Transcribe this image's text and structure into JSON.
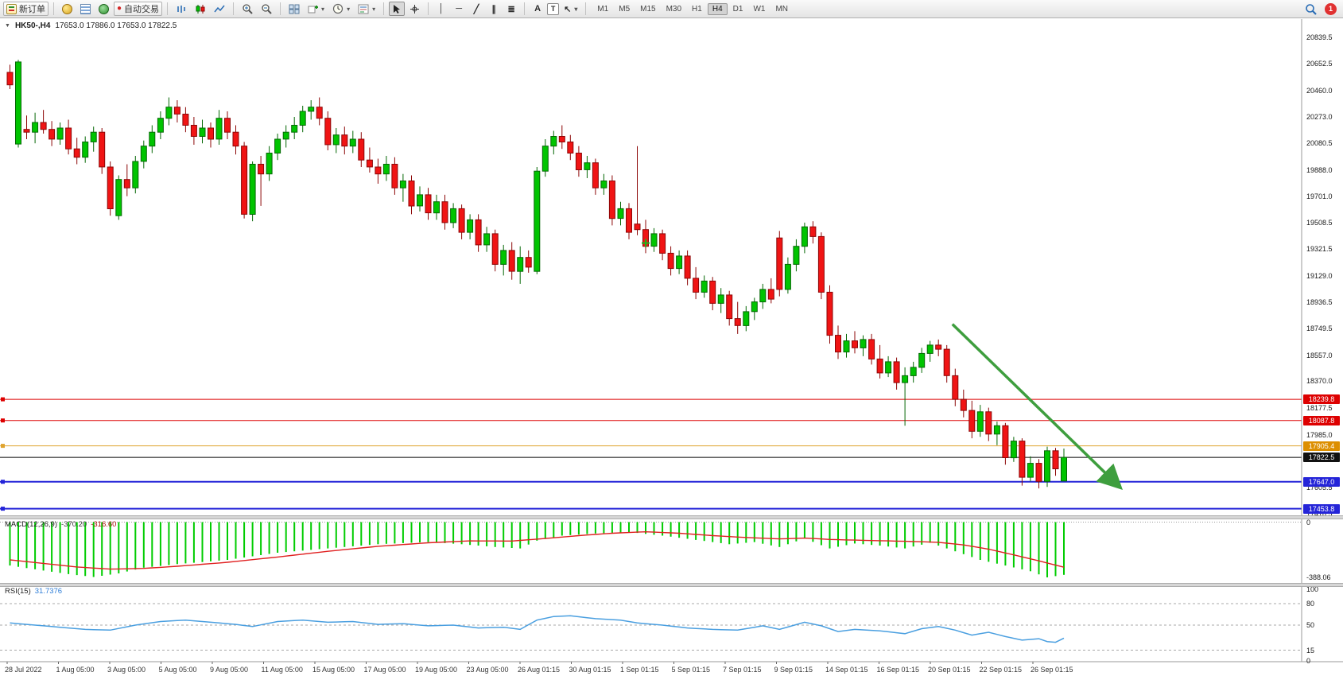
{
  "toolbar": {
    "new_order": "新订单",
    "autotrading": "自动交易",
    "timeframes": [
      "M1",
      "M5",
      "M15",
      "M30",
      "H1",
      "H4",
      "D1",
      "W1",
      "MN"
    ],
    "active_timeframe": "H4",
    "notification_count": "1"
  },
  "icons": {
    "collapse": "▼",
    "dropdown": "▾",
    "autotrading_dot": "●",
    "vline": "│",
    "hline": "─",
    "trendline": "╱",
    "channel": "∥",
    "fibonacci": "≣",
    "text_tool": "A",
    "label_tool": "T",
    "arrows_tool": "↖"
  },
  "chart": {
    "title_symbol": "HK50-,H4",
    "title_ohlc": "17653.0 17886.0 17653.0 17822.5"
  },
  "price_axis": {
    "ticks": [
      20839.5,
      20652.5,
      20460.0,
      20273.0,
      20080.5,
      19888.0,
      19701.0,
      19508.5,
      19321.5,
      19129.0,
      18936.5,
      18749.5,
      18557.0,
      18370.0,
      18177.5,
      17985.0,
      17605.5,
      17418.5
    ]
  },
  "indicators": {
    "macd": {
      "name": "MACD(12,26,9)",
      "v1": "-370.20",
      "v2": "-316.60",
      "axis_labels": [
        {
          "v": 0,
          "t": "0"
        },
        {
          "v": -388.06,
          "t": "-388.06"
        }
      ]
    },
    "rsi": {
      "name": "RSI(15)",
      "value": "31.7376",
      "axis_labels": [
        {
          "v": 100,
          "t": "100"
        },
        {
          "v": 80,
          "t": "80"
        },
        {
          "v": 50,
          "t": "50"
        },
        {
          "v": 15,
          "t": "15"
        },
        {
          "v": 0,
          "t": "0"
        }
      ],
      "level_lines": [
        80,
        50,
        15
      ]
    }
  },
  "colors": {
    "up": "#00c400",
    "down": "#f01414",
    "up_stroke": "#056805",
    "down_stroke": "#8c0606",
    "macd_hist": "#00cc00",
    "macd_signal": "#e02020",
    "rsi_line": "#4a9fe0",
    "arrow": "#3e9e3e",
    "cross": "#1db51d"
  },
  "time_axis": {
    "labels": [
      "28 Jul 2022",
      "1 Aug 05:00",
      "3 Aug 05:00",
      "5 Aug 05:00",
      "9 Aug 05:00",
      "11 Aug 05:00",
      "15 Aug 05:00",
      "17 Aug 05:00",
      "19 Aug 05:00",
      "23 Aug 05:00",
      "26 Aug 01:15",
      "30 Aug 01:15",
      "1 Sep 01:15",
      "5 Sep 01:15",
      "7 Sep 01:15",
      "9 Sep 01:15",
      "14 Sep 01:15",
      "16 Sep 01:15",
      "20 Sep 01:15",
      "22 Sep 01:15",
      "26 Sep 01:15"
    ]
  },
  "chart_data": {
    "type": "candlestick",
    "symbol": "HK50-",
    "timeframe": "H4",
    "ohlc_display": {
      "open": 17653.0,
      "high": 17886.0,
      "low": 17653.0,
      "close": 17822.5
    },
    "ylim": [
      17406,
      20973
    ],
    "macd_vlim": [
      -427,
      25
    ],
    "rsi_vlim": [
      0,
      100
    ],
    "candles": [
      [
        20590,
        20645,
        20470,
        20500
      ],
      [
        20075,
        20680,
        20050,
        20665
      ],
      [
        20180,
        20280,
        20110,
        20160
      ],
      [
        20160,
        20300,
        20080,
        20230
      ],
      [
        20230,
        20320,
        20150,
        20180
      ],
      [
        20180,
        20240,
        20060,
        20110
      ],
      [
        20110,
        20230,
        20070,
        20190
      ],
      [
        20190,
        20250,
        20000,
        20040
      ],
      [
        20040,
        20120,
        19930,
        19980
      ],
      [
        19980,
        20130,
        19940,
        20090
      ],
      [
        20090,
        20200,
        20020,
        20160
      ],
      [
        20160,
        20190,
        19860,
        19910
      ],
      [
        19910,
        19950,
        19560,
        19610
      ],
      [
        19560,
        19850,
        19530,
        19820
      ],
      [
        19820,
        19930,
        19700,
        19760
      ],
      [
        19760,
        19990,
        19720,
        19950
      ],
      [
        19950,
        20100,
        19900,
        20060
      ],
      [
        20060,
        20210,
        20010,
        20160
      ],
      [
        20160,
        20310,
        20110,
        20260
      ],
      [
        20260,
        20410,
        20210,
        20340
      ],
      [
        20340,
        20390,
        20230,
        20290
      ],
      [
        20290,
        20340,
        20160,
        20210
      ],
      [
        20210,
        20270,
        20070,
        20130
      ],
      [
        20130,
        20250,
        20080,
        20190
      ],
      [
        20190,
        20230,
        20050,
        20110
      ],
      [
        20110,
        20320,
        20070,
        20260
      ],
      [
        20260,
        20310,
        20110,
        20160
      ],
      [
        20160,
        20210,
        20000,
        20060
      ],
      [
        20060,
        20090,
        19540,
        19570
      ],
      [
        19570,
        19950,
        19520,
        19930
      ],
      [
        19930,
        19990,
        19630,
        19860
      ],
      [
        19860,
        20060,
        19810,
        20010
      ],
      [
        20010,
        20150,
        19960,
        20110
      ],
      [
        20110,
        20210,
        20050,
        20160
      ],
      [
        20160,
        20270,
        20110,
        20210
      ],
      [
        20210,
        20350,
        20160,
        20310
      ],
      [
        20310,
        20390,
        20250,
        20340
      ],
      [
        20340,
        20410,
        20210,
        20260
      ],
      [
        20260,
        20310,
        20030,
        20070
      ],
      [
        20070,
        20190,
        20010,
        20140
      ],
      [
        20140,
        20200,
        20000,
        20060
      ],
      [
        20060,
        20170,
        20010,
        20110
      ],
      [
        20110,
        20160,
        19910,
        19960
      ],
      [
        19960,
        20050,
        19870,
        19910
      ],
      [
        19910,
        19970,
        19790,
        19860
      ],
      [
        19860,
        19990,
        19810,
        19930
      ],
      [
        19930,
        19980,
        19710,
        19760
      ],
      [
        19760,
        19860,
        19660,
        19810
      ],
      [
        19810,
        19850,
        19570,
        19630
      ],
      [
        19630,
        19770,
        19590,
        19710
      ],
      [
        19710,
        19760,
        19530,
        19580
      ],
      [
        19580,
        19710,
        19530,
        19660
      ],
      [
        19660,
        19710,
        19460,
        19510
      ],
      [
        19510,
        19650,
        19470,
        19610
      ],
      [
        19610,
        19640,
        19390,
        19440
      ],
      [
        19440,
        19570,
        19390,
        19530
      ],
      [
        19530,
        19570,
        19300,
        19350
      ],
      [
        19350,
        19480,
        19300,
        19430
      ],
      [
        19430,
        19460,
        19160,
        19210
      ],
      [
        19210,
        19350,
        19130,
        19310
      ],
      [
        19310,
        19370,
        19100,
        19160
      ],
      [
        19160,
        19340,
        19070,
        19260
      ],
      [
        19260,
        19310,
        19150,
        19190
      ],
      [
        19160,
        19910,
        19140,
        19880
      ],
      [
        19880,
        20110,
        19840,
        20060
      ],
      [
        20060,
        20170,
        20000,
        20130
      ],
      [
        20130,
        20210,
        20040,
        20090
      ],
      [
        20090,
        20140,
        19960,
        20010
      ],
      [
        20010,
        20060,
        19840,
        19890
      ],
      [
        19890,
        19990,
        19830,
        19940
      ],
      [
        19940,
        19970,
        19710,
        19760
      ],
      [
        19760,
        19860,
        19710,
        19810
      ],
      [
        19810,
        19850,
        19490,
        19540
      ],
      [
        19540,
        19660,
        19490,
        19610
      ],
      [
        19610,
        19650,
        19390,
        19440
      ],
      [
        19500,
        20060,
        19420,
        19460
      ],
      [
        19460,
        19530,
        19290,
        19340
      ],
      [
        19340,
        19470,
        19300,
        19430
      ],
      [
        19430,
        19460,
        19240,
        19290
      ],
      [
        19290,
        19340,
        19130,
        19180
      ],
      [
        19180,
        19310,
        19140,
        19270
      ],
      [
        19270,
        19310,
        19060,
        19110
      ],
      [
        19110,
        19190,
        18960,
        19010
      ],
      [
        19010,
        19130,
        18970,
        19090
      ],
      [
        19090,
        19120,
        18880,
        18930
      ],
      [
        18930,
        19040,
        18860,
        18990
      ],
      [
        18990,
        19020,
        18770,
        18820
      ],
      [
        18820,
        18940,
        18710,
        18770
      ],
      [
        18770,
        18910,
        18730,
        18870
      ],
      [
        18870,
        18970,
        18810,
        18940
      ],
      [
        18940,
        19070,
        18890,
        19030
      ],
      [
        19030,
        19110,
        18930,
        18960
      ],
      [
        19400,
        19450,
        18980,
        19030
      ],
      [
        19030,
        19260,
        19000,
        19210
      ],
      [
        19210,
        19390,
        19160,
        19340
      ],
      [
        19340,
        19510,
        19290,
        19480
      ],
      [
        19480,
        19520,
        19360,
        19410
      ],
      [
        19410,
        19440,
        18960,
        19010
      ],
      [
        19010,
        19060,
        18640,
        18700
      ],
      [
        18700,
        18770,
        18530,
        18580
      ],
      [
        18580,
        18710,
        18540,
        18660
      ],
      [
        18660,
        18730,
        18570,
        18610
      ],
      [
        18610,
        18700,
        18550,
        18670
      ],
      [
        18670,
        18710,
        18490,
        18530
      ],
      [
        18530,
        18630,
        18390,
        18430
      ],
      [
        18430,
        18550,
        18400,
        18510
      ],
      [
        18510,
        18540,
        18310,
        18360
      ],
      [
        18360,
        18470,
        18050,
        18410
      ],
      [
        18410,
        18510,
        18360,
        18470
      ],
      [
        18470,
        18610,
        18430,
        18570
      ],
      [
        18570,
        18660,
        18510,
        18630
      ],
      [
        18630,
        18670,
        18550,
        18600
      ],
      [
        18600,
        18630,
        18360,
        18410
      ],
      [
        18410,
        18460,
        18190,
        18240
      ],
      [
        18240,
        18310,
        18110,
        18160
      ],
      [
        18160,
        18230,
        17960,
        18010
      ],
      [
        18010,
        18200,
        17970,
        18150
      ],
      [
        18150,
        18180,
        17940,
        17990
      ],
      [
        17990,
        18080,
        17910,
        18050
      ],
      [
        18050,
        18070,
        17770,
        17820
      ],
      [
        17820,
        17970,
        17790,
        17940
      ],
      [
        17940,
        17960,
        17620,
        17680
      ],
      [
        17680,
        17830,
        17650,
        17780
      ],
      [
        17780,
        17810,
        17600,
        17650
      ],
      [
        17650,
        17900,
        17610,
        17870
      ],
      [
        17870,
        17890,
        17690,
        17740
      ],
      [
        17653,
        17886,
        17653,
        17822.5
      ]
    ],
    "horizontal_lines": [
      {
        "price": 18239.8,
        "label": "18239.8",
        "color": "#dd0000",
        "badge": "#dd0000",
        "width": 1,
        "handles": true
      },
      {
        "price": 18087.8,
        "label": "18087.8",
        "color": "#dd0000",
        "badge": "#dd0000",
        "width": 1,
        "handles": true
      },
      {
        "price": 17905.4,
        "label": "17905.4",
        "color": "#dfa32e",
        "badge": "#dd8f00",
        "width": 1,
        "handles": true
      },
      {
        "price": 17822.5,
        "label": "17822.5",
        "color": "#000000",
        "badge": "#111111",
        "width": 1,
        "handles": false
      },
      {
        "price": 17647.0,
        "label": "17647.0",
        "color": "#2424d8",
        "badge": "#2424d8",
        "width": 2,
        "handles": true
      },
      {
        "price": 17453.8,
        "label": "17453.8",
        "color": "#2424d8",
        "badge": "#2424d8",
        "width": 2,
        "handles": true
      }
    ],
    "annotations": [
      {
        "type": "arrow",
        "start": {
          "bar": 113,
          "price": 18780
        },
        "end": {
          "bar": 133,
          "price": 17610
        }
      },
      {
        "type": "cross",
        "at": {
          "bar": 76,
          "price": 19363
        }
      }
    ],
    "macd_hist_anchors": [
      [
        0,
        -305
      ],
      [
        4,
        -340
      ],
      [
        7,
        -365
      ],
      [
        10,
        -385
      ],
      [
        13,
        -360
      ],
      [
        16,
        -320
      ],
      [
        20,
        -295
      ],
      [
        26,
        -265
      ],
      [
        32,
        -215
      ],
      [
        38,
        -185
      ],
      [
        44,
        -155
      ],
      [
        50,
        -140
      ],
      [
        54,
        -155
      ],
      [
        58,
        -175
      ],
      [
        61,
        -185
      ],
      [
        63,
        -130
      ],
      [
        66,
        -95
      ],
      [
        70,
        -80
      ],
      [
        74,
        -70
      ],
      [
        78,
        -95
      ],
      [
        82,
        -125
      ],
      [
        86,
        -155
      ],
      [
        89,
        -140
      ],
      [
        92,
        -175
      ],
      [
        95,
        -115
      ],
      [
        98,
        -185
      ],
      [
        101,
        -150
      ],
      [
        104,
        -165
      ],
      [
        107,
        -185
      ],
      [
        110,
        -145
      ],
      [
        113,
        -205
      ],
      [
        116,
        -265
      ],
      [
        119,
        -305
      ],
      [
        122,
        -345
      ],
      [
        124,
        -388.06
      ],
      [
        126,
        -370.2
      ]
    ],
    "macd_signal_anchors": [
      [
        0,
        -265
      ],
      [
        4,
        -290
      ],
      [
        8,
        -315
      ],
      [
        12,
        -330
      ],
      [
        16,
        -325
      ],
      [
        20,
        -310
      ],
      [
        26,
        -282
      ],
      [
        32,
        -245
      ],
      [
        38,
        -205
      ],
      [
        44,
        -170
      ],
      [
        50,
        -145
      ],
      [
        55,
        -132
      ],
      [
        60,
        -133
      ],
      [
        64,
        -115
      ],
      [
        68,
        -95
      ],
      [
        72,
        -78
      ],
      [
        76,
        -68
      ],
      [
        80,
        -78
      ],
      [
        84,
        -95
      ],
      [
        88,
        -108
      ],
      [
        92,
        -118
      ],
      [
        95,
        -112
      ],
      [
        98,
        -122
      ],
      [
        102,
        -128
      ],
      [
        105,
        -132
      ],
      [
        108,
        -136
      ],
      [
        111,
        -142
      ],
      [
        114,
        -160
      ],
      [
        117,
        -190
      ],
      [
        120,
        -230
      ],
      [
        123,
        -272
      ],
      [
        126,
        -316.6
      ]
    ],
    "rsi_anchors": [
      [
        0,
        53
      ],
      [
        3,
        50
      ],
      [
        6,
        47
      ],
      [
        9,
        44
      ],
      [
        12,
        43
      ],
      [
        15,
        50
      ],
      [
        18,
        55
      ],
      [
        21,
        57
      ],
      [
        24,
        54
      ],
      [
        27,
        51
      ],
      [
        29,
        48
      ],
      [
        32,
        55
      ],
      [
        35,
        57
      ],
      [
        38,
        54
      ],
      [
        41,
        55
      ],
      [
        44,
        51
      ],
      [
        47,
        52
      ],
      [
        50,
        49
      ],
      [
        53,
        50
      ],
      [
        56,
        46
      ],
      [
        59,
        47
      ],
      [
        61,
        44
      ],
      [
        63,
        57
      ],
      [
        65,
        62
      ],
      [
        67,
        63
      ],
      [
        70,
        59
      ],
      [
        73,
        57
      ],
      [
        75,
        53
      ],
      [
        78,
        50
      ],
      [
        81,
        46
      ],
      [
        84,
        44
      ],
      [
        87,
        43
      ],
      [
        90,
        49
      ],
      [
        92,
        44
      ],
      [
        95,
        54
      ],
      [
        97,
        49
      ],
      [
        99,
        41
      ],
      [
        101,
        44
      ],
      [
        104,
        42
      ],
      [
        107,
        38
      ],
      [
        109,
        45
      ],
      [
        111,
        48
      ],
      [
        113,
        43
      ],
      [
        115,
        36
      ],
      [
        117,
        40
      ],
      [
        119,
        34
      ],
      [
        121,
        29
      ],
      [
        123,
        31
      ],
      [
        124,
        27
      ],
      [
        125,
        26
      ],
      [
        126,
        31.74
      ]
    ]
  }
}
